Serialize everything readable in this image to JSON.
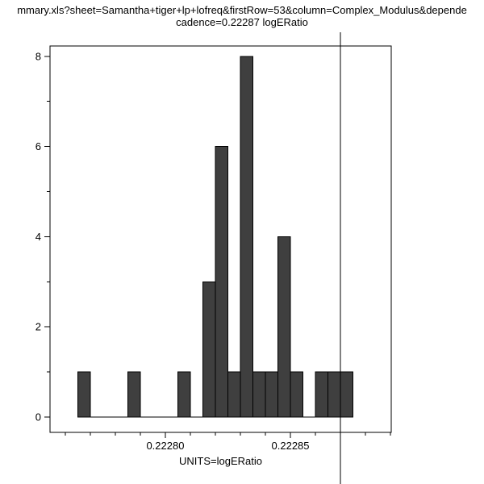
{
  "title": {
    "line1": "mmary.xls?sheet=Samantha+tiger+lp+lofreq&firstRow=53&column=Complex_Modulus&depende",
    "line2": "cadence=0.22287 logERatio"
  },
  "chart_data": {
    "type": "bar",
    "subtype": "histogram",
    "title": "cadence=0.22287 logERatio",
    "xlabel": "UNITS=logERatio",
    "ylabel": "",
    "xlim": [
      0.2227539,
      0.2228903
    ],
    "ylim": [
      -0.34,
      8.23
    ],
    "grid": false,
    "bin_width": 5e-06,
    "bins": [
      {
        "start": 0.222765,
        "count": 1
      },
      {
        "start": 0.22277,
        "count": 0
      },
      {
        "start": 0.222775,
        "count": 0
      },
      {
        "start": 0.22278,
        "count": 0
      },
      {
        "start": 0.222785,
        "count": 1
      },
      {
        "start": 0.22279,
        "count": 0
      },
      {
        "start": 0.222795,
        "count": 0
      },
      {
        "start": 0.2228,
        "count": 0
      },
      {
        "start": 0.222805,
        "count": 1
      },
      {
        "start": 0.22281,
        "count": 0
      },
      {
        "start": 0.222815,
        "count": 3
      },
      {
        "start": 0.22282,
        "count": 6
      },
      {
        "start": 0.222825,
        "count": 1
      },
      {
        "start": 0.22283,
        "count": 8
      },
      {
        "start": 0.222835,
        "count": 1
      },
      {
        "start": 0.22284,
        "count": 1
      },
      {
        "start": 0.222845,
        "count": 4
      },
      {
        "start": 0.22285,
        "count": 1
      },
      {
        "start": 0.222855,
        "count": 0
      },
      {
        "start": 0.22286,
        "count": 1
      },
      {
        "start": 0.222865,
        "count": 1
      },
      {
        "start": 0.22287,
        "count": 1
      }
    ],
    "xticks_major": [
      {
        "value": 0.2228,
        "label": "0.22280"
      },
      {
        "value": 0.22285,
        "label": "0.22285"
      }
    ],
    "xticks_minor": [
      0.22276,
      0.22277,
      0.22278,
      0.22279,
      0.22281,
      0.22282,
      0.22283,
      0.22284,
      0.22286,
      0.22287,
      0.22288,
      0.22289
    ],
    "yticks_major": [
      {
        "value": 0,
        "label": "0"
      },
      {
        "value": 2,
        "label": "2"
      },
      {
        "value": 4,
        "label": "4"
      },
      {
        "value": 6,
        "label": "6"
      },
      {
        "value": 8,
        "label": "8"
      }
    ],
    "yticks_minor": [
      1,
      3,
      5,
      7
    ],
    "vline_x": 0.22287,
    "colors": {
      "bar_fill": "#3f3f3f",
      "line": "#000000",
      "background": "#ffffff"
    }
  }
}
